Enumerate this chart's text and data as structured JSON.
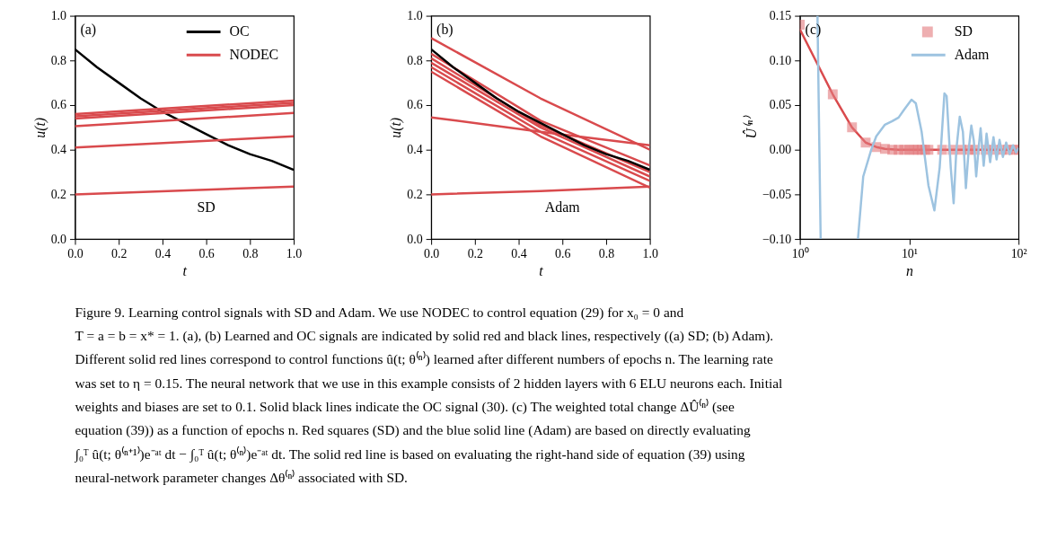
{
  "chart_data": [
    {
      "type": "line",
      "xlabel": "t",
      "ylabel": "u(t)",
      "xlim": [
        0,
        1
      ],
      "ylim": [
        0,
        1
      ],
      "xticks": [
        {
          "value": 0,
          "label": "0.0"
        },
        {
          "value": 0.2,
          "label": "0.2"
        },
        {
          "value": 0.4,
          "label": "0.4"
        },
        {
          "value": 0.6,
          "label": "0.6"
        },
        {
          "value": 0.8,
          "label": "0.8"
        },
        {
          "value": 1,
          "label": "1.0"
        }
      ],
      "yticks": [
        {
          "value": 0,
          "label": "0.0"
        },
        {
          "value": 0.2,
          "label": "0.2"
        },
        {
          "value": 0.4,
          "label": "0.4"
        },
        {
          "value": 0.6,
          "label": "0.6"
        },
        {
          "value": 0.8,
          "label": "0.8"
        },
        {
          "value": 1,
          "label": "1.0"
        }
      ],
      "legend": "top right",
      "annotations": [
        "(a)",
        "SD"
      ],
      "series": [
        {
          "name": "OC",
          "color": "#000000",
          "x": [
            0,
            0.1,
            0.2,
            0.3,
            0.4,
            0.5,
            0.6,
            0.7,
            0.8,
            0.9,
            1
          ],
          "values": [
            0.85,
            0.77,
            0.7,
            0.63,
            0.57,
            0.52,
            0.47,
            0.42,
            0.38,
            0.35,
            0.31
          ]
        },
        {
          "name": "NODEC",
          "color": "#d94a4d",
          "x": [
            0,
            1
          ],
          "values": [
            0.56,
            0.62
          ]
        },
        {
          "color": "#d94a4d",
          "x": [
            0,
            1
          ],
          "values": [
            0.55,
            0.61
          ]
        },
        {
          "color": "#d94a4d",
          "x": [
            0,
            1
          ],
          "values": [
            0.54,
            0.6
          ]
        },
        {
          "color": "#d94a4d",
          "x": [
            0,
            1
          ],
          "values": [
            0.505,
            0.565
          ]
        },
        {
          "color": "#d94a4d",
          "x": [
            0,
            1
          ],
          "values": [
            0.41,
            0.46
          ]
        },
        {
          "color": "#d94a4d",
          "x": [
            0,
            1
          ],
          "values": [
            0.2,
            0.235
          ]
        }
      ]
    },
    {
      "type": "line",
      "xlabel": "t",
      "ylabel": "u(t)",
      "xlim": [
        0,
        1
      ],
      "ylim": [
        0,
        1
      ],
      "xticks": [
        {
          "value": 0,
          "label": "0.0"
        },
        {
          "value": 0.2,
          "label": "0.2"
        },
        {
          "value": 0.4,
          "label": "0.4"
        },
        {
          "value": 0.6,
          "label": "0.6"
        },
        {
          "value": 0.8,
          "label": "0.8"
        },
        {
          "value": 1,
          "label": "1.0"
        }
      ],
      "yticks": [
        {
          "value": 0,
          "label": "0.0"
        },
        {
          "value": 0.2,
          "label": "0.2"
        },
        {
          "value": 0.4,
          "label": "0.4"
        },
        {
          "value": 0.6,
          "label": "0.6"
        },
        {
          "value": 0.8,
          "label": "0.8"
        },
        {
          "value": 1,
          "label": "1.0"
        }
      ],
      "annotations": [
        "(b)",
        "Adam"
      ],
      "series": [
        {
          "color": "#d94a4d",
          "x": [
            0,
            0.5,
            1
          ],
          "values": [
            0.9,
            0.63,
            0.4
          ]
        },
        {
          "color": "#d94a4d",
          "x": [
            0,
            0.5,
            1
          ],
          "values": [
            0.545,
            0.48,
            0.42
          ]
        },
        {
          "color": "#d94a4d",
          "x": [
            0,
            0.5,
            1
          ],
          "values": [
            0.2,
            0.215,
            0.235
          ]
        },
        {
          "color": "#d94a4d",
          "x": [
            0,
            0.5,
            1
          ],
          "values": [
            0.83,
            0.53,
            0.33
          ]
        },
        {
          "color": "#d94a4d",
          "x": [
            0,
            0.5,
            1
          ],
          "values": [
            0.81,
            0.51,
            0.3
          ]
        },
        {
          "color": "#d94a4d",
          "x": [
            0,
            0.5,
            1
          ],
          "values": [
            0.79,
            0.5,
            0.28
          ]
        },
        {
          "color": "#d94a4d",
          "x": [
            0,
            0.5,
            1
          ],
          "values": [
            0.77,
            0.48,
            0.26
          ]
        },
        {
          "color": "#d94a4d",
          "x": [
            0,
            0.5,
            1
          ],
          "values": [
            0.75,
            0.46,
            0.23
          ]
        },
        {
          "color": "#000000",
          "x": [
            0,
            0.1,
            0.2,
            0.3,
            0.4,
            0.5,
            0.6,
            0.7,
            0.8,
            0.9,
            1
          ],
          "values": [
            0.85,
            0.77,
            0.7,
            0.63,
            0.57,
            0.52,
            0.47,
            0.42,
            0.38,
            0.35,
            0.31
          ]
        }
      ]
    },
    {
      "type": "line",
      "xlabel": "n",
      "ylabel": "Û⁽ⁿ⁾",
      "log": "x",
      "xlim": [
        1,
        100
      ],
      "ylim": [
        -0.1,
        0.15
      ],
      "xticks": [
        {
          "value": 1,
          "label": "10⁰"
        },
        {
          "value": 10,
          "label": "10¹"
        },
        {
          "value": 100,
          "label": "10²"
        }
      ],
      "yticks": [
        {
          "value": -0.1,
          "label": "−0.10"
        },
        {
          "value": -0.05,
          "label": "−0.05"
        },
        {
          "value": 0,
          "label": "0.00"
        },
        {
          "value": 0.05,
          "label": "0.05"
        },
        {
          "value": 0.1,
          "label": "0.10"
        },
        {
          "value": 0.15,
          "label": "0.15"
        }
      ],
      "legend": "top right",
      "annotations": [
        "(c)"
      ],
      "series": [
        {
          "type": "line",
          "color": "#d94a4d",
          "x": [
            1,
            2,
            3,
            4,
            5,
            6,
            8,
            10,
            20,
            50,
            100
          ],
          "values": [
            0.135,
            0.062,
            0.025,
            0.008,
            0.003,
            0.001,
            0,
            0,
            0,
            0,
            0
          ]
        },
        {
          "type": "scatter",
          "name": "SD",
          "marker": "square",
          "color": "#e37b7e",
          "x": [
            1,
            2,
            3,
            4,
            5,
            6,
            7,
            8,
            9,
            10,
            11,
            12,
            13,
            14,
            15,
            20,
            25,
            30,
            35,
            40,
            50,
            60,
            70,
            80,
            90,
            100
          ],
          "values": [
            0.14,
            0.062,
            0.025,
            0.008,
            0.003,
            0.001,
            0,
            0,
            0,
            0,
            0,
            0,
            0,
            0,
            0,
            0,
            0,
            0,
            0,
            0,
            0,
            0,
            0,
            0,
            0,
            0
          ]
        },
        {
          "type": "line",
          "name": "Adam",
          "color": "#9dc3e0",
          "x": [
            1.45,
            1.55,
            2.5,
            3.4,
            3.8,
            4.5,
            5,
            6,
            7,
            8,
            9,
            10.5,
            11.5,
            13,
            15,
            17,
            19,
            21,
            22,
            24,
            25.5,
            27,
            29,
            31,
            33,
            35,
            37,
            39,
            41,
            43,
            45,
            48,
            51,
            55,
            59,
            63,
            67,
            72,
            77,
            83,
            89,
            95,
            100
          ],
          "values": [
            0.15,
            -0.1,
            null,
            -0.1,
            -0.03,
            0,
            0.015,
            0.028,
            0.032,
            0.036,
            0.045,
            0.056,
            0.052,
            0.02,
            -0.04,
            -0.068,
            -0.02,
            0.063,
            0.06,
            -0.02,
            -0.06,
            0,
            0.037,
            0.02,
            -0.043,
            0,
            0.027,
            0.01,
            -0.03,
            0,
            0.024,
            -0.018,
            0.018,
            -0.014,
            0.014,
            -0.011,
            0.011,
            -0.008,
            0.008,
            -0.005,
            0.005,
            -0.003,
            0.002
          ]
        }
      ]
    },
    {
      "type": "other",
      "annotations": [
        "Figure 9. Learning control signals with SD and Adam. We use NODEC to control equation (29) for x₀ = 0 and",
        "T = a = b = x* = 1. (a), (b) Learned and OC signals are indicated by solid red and black lines, respectively ((a) SD; (b) Adam).",
        "Different solid red lines correspond to control functions û(t; θ⁽ⁿ⁾) learned after different numbers of epochs n. The learning rate",
        "was set to η = 0.15. The neural network that we use in this example consists of 2 hidden layers with 6 ELU neurons each. Initial",
        "weights and biases are set to 0.1. Solid black lines indicate the OC signal (30). (c) The weighted total change ΔÛ⁽ⁿ⁾ (see",
        "equation (39)) as a function of epochs n. Red squares (SD) and the blue solid line (Adam) are based on directly evaluating",
        "∫₀ᵀ û(t; θ⁽ⁿ⁺¹⁾)e⁻ᵃᵗ dt − ∫₀ᵀ û(t; θ⁽ⁿ⁾)e⁻ᵃᵗ dt. The solid red line is based on evaluating the right-hand side of equation (39) using",
        "neural-network parameter changes Δθ⁽ⁿ⁾ associated with SD."
      ]
    }
  ]
}
